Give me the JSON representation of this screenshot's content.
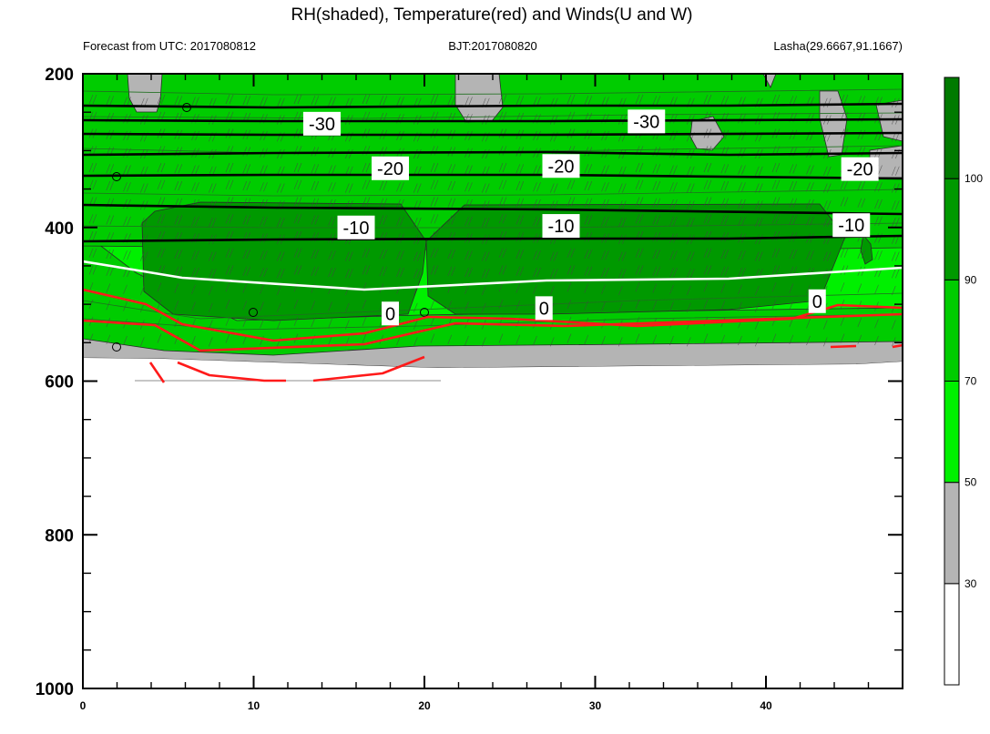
{
  "chart_data": {
    "type": "contour-cross-section",
    "title": "RH(shaded), Temperature(red) and Winds(U and W)",
    "left_subtitle": "Forecast from UTC: 2017080812",
    "center_subtitle": "BJT:2017080820",
    "right_subtitle": "Lasha(29.6667,91.1667)",
    "x_ticks": [
      "0",
      "10",
      "20",
      "30",
      "40"
    ],
    "y_ticks": [
      "200",
      "400",
      "600",
      "800",
      "1000"
    ],
    "xlim": [
      0,
      48
    ],
    "ylim": [
      200,
      1000
    ],
    "y_reversed": true,
    "colorbar": {
      "levels": [
        "30",
        "50",
        "70",
        "90",
        "100"
      ],
      "colors": [
        "#ffffff",
        "#b4b4b4",
        "#00f000",
        "#00cc00",
        "#009900",
        "#007a00"
      ]
    },
    "temperature_labels": [
      {
        "text": "-30",
        "x": 14,
        "p": 265
      },
      {
        "text": "-30",
        "x": 33,
        "p": 262
      },
      {
        "text": "-20",
        "x": 18,
        "p": 323
      },
      {
        "text": "-20",
        "x": 28,
        "p": 320
      },
      {
        "text": "-20",
        "x": 45.5,
        "p": 324
      },
      {
        "text": "-10",
        "x": 16,
        "p": 400
      },
      {
        "text": "-10",
        "x": 28,
        "p": 398
      },
      {
        "text": "-10",
        "x": 45,
        "p": 397
      },
      {
        "text": "0",
        "x": 18,
        "p": 512
      },
      {
        "text": "0",
        "x": 27,
        "p": 505
      },
      {
        "text": "0",
        "x": 43,
        "p": 496
      }
    ]
  }
}
